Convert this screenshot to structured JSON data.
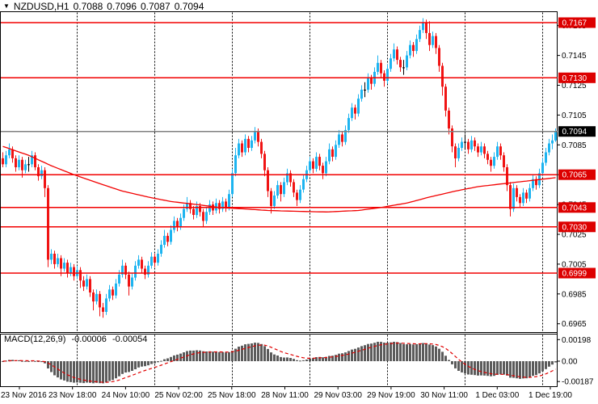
{
  "header": {
    "menu_icon": "▼",
    "symbol_period": "NZDUSD,H1",
    "open": "0.7088",
    "high": "0.7096",
    "low": "0.7087",
    "close": "0.7094"
  },
  "macd_panel": {
    "label": "MACD(12,26,9)",
    "main_value": "-0.00006",
    "signal_value": "-0.00054",
    "axis": [
      {
        "label": "0.00198",
        "value": 0.00198
      },
      {
        "label": "0.00",
        "value": 0.0
      },
      {
        "label": "-0.00187",
        "value": -0.00187
      }
    ]
  },
  "colors": {
    "up_candle": "#1db4f0",
    "down_candle": "#f01414",
    "doji_candle": "#000000",
    "level_line": "#f20000",
    "ma_line": "#f20000",
    "current_line": "#808080",
    "badge_level_bg": "#dd0000",
    "badge_current_bg": "#000000",
    "badge_text": "#ffffff",
    "histogram": "#5b5b5b",
    "signal_line": "#e00000",
    "border": "#000000",
    "separator": "#000000",
    "text": "#000000",
    "background": "#ffffff"
  },
  "chart_data": {
    "type": "candlestick",
    "symbol": "NZDUSD",
    "timeframe": "H1",
    "title": "NZDUSD,H1",
    "last_ohlc": {
      "open": 0.7088,
      "high": 0.7096,
      "low": 0.7087,
      "close": 0.7094
    },
    "current_price": 0.7094,
    "y_ticks": [
      0.7165,
      0.7145,
      0.7125,
      0.7105,
      0.7085,
      0.7065,
      0.7045,
      0.7025,
      0.7005,
      0.6985,
      0.6965
    ],
    "level_lines": [
      0.7167,
      0.713,
      0.7065,
      0.7043,
      0.703,
      0.6999
    ],
    "x_labels": [
      "23 Nov 2016",
      "23 Nov 18:00",
      "24 Nov 10:00",
      "25 Nov 02:00",
      "25 Nov 18:00",
      "28 Nov 11:00",
      "29 Nov 03:00",
      "29 Nov 19:00",
      "30 Nov 11:00",
      "1 Dec 03:00",
      "1 Dec 19:00"
    ],
    "y_range": [
      0.6962,
      0.7175
    ],
    "macd": {
      "params": [
        12,
        26,
        9
      ],
      "y_range": [
        -0.00187,
        0.00198
      ],
      "last_main": -6e-05,
      "last_signal": -0.00054
    },
    "ma_points": [
      [
        0,
        0.7084
      ],
      [
        8,
        0.7078
      ],
      [
        15,
        0.7071
      ],
      [
        22,
        0.7065
      ],
      [
        30,
        0.7059
      ],
      [
        37,
        0.7054
      ],
      [
        45,
        0.705
      ],
      [
        52,
        0.7047
      ],
      [
        60,
        0.7045
      ],
      [
        67,
        0.7043
      ],
      [
        75,
        0.7042
      ],
      [
        82,
        0.7041
      ],
      [
        90,
        0.70405
      ],
      [
        100,
        0.704
      ],
      [
        110,
        0.7041
      ],
      [
        117,
        0.7043
      ],
      [
        125,
        0.7046
      ],
      [
        132,
        0.705
      ],
      [
        140,
        0.7054
      ],
      [
        147,
        0.7057
      ],
      [
        155,
        0.7059
      ],
      [
        163,
        0.7061
      ],
      [
        171,
        0.7063
      ]
    ],
    "candles": [
      [
        0.7076,
        0.708,
        0.707,
        0.7072
      ],
      [
        0.7072,
        0.7081,
        0.707,
        0.7078
      ],
      [
        0.7078,
        0.7086,
        0.7076,
        0.7082
      ],
      [
        0.7082,
        0.7084,
        0.7073,
        0.7076
      ],
      [
        0.7076,
        0.7078,
        0.7067,
        0.707
      ],
      [
        0.707,
        0.7078,
        0.7068,
        0.7075
      ],
      [
        0.7075,
        0.7077,
        0.7063,
        0.7068
      ],
      [
        0.7068,
        0.7075,
        0.7066,
        0.7072
      ],
      [
        0.7072,
        0.7077,
        0.7067,
        0.7072
      ],
      [
        0.7072,
        0.7081,
        0.707,
        0.7078
      ],
      [
        0.7078,
        0.708,
        0.7068,
        0.707
      ],
      [
        0.707,
        0.7072,
        0.7061,
        0.7064
      ],
      [
        0.7064,
        0.7071,
        0.7062,
        0.7068
      ],
      [
        0.7068,
        0.707,
        0.705,
        0.7056
      ],
      [
        0.7056,
        0.7058,
        0.7003,
        0.7008
      ],
      [
        0.7008,
        0.7015,
        0.7005,
        0.7012
      ],
      [
        0.7012,
        0.7014,
        0.7002,
        0.7005
      ],
      [
        0.7005,
        0.7012,
        0.7003,
        0.7009
      ],
      [
        0.7009,
        0.7011,
        0.6997,
        0.7002
      ],
      [
        0.7002,
        0.7009,
        0.7,
        0.7006
      ],
      [
        0.7006,
        0.7008,
        0.6996,
        0.6999
      ],
      [
        0.6999,
        0.7006,
        0.6997,
        0.7003
      ],
      [
        0.7003,
        0.7005,
        0.6994,
        0.6997
      ],
      [
        0.6997,
        0.7004,
        0.6995,
        0.7001
      ],
      [
        0.7001,
        0.7003,
        0.6989,
        0.6994
      ],
      [
        0.6994,
        0.6997,
        0.6987,
        0.699
      ],
      [
        0.699,
        0.6998,
        0.6988,
        0.6995
      ],
      [
        0.6995,
        0.6997,
        0.6983,
        0.6986
      ],
      [
        0.6986,
        0.6988,
        0.6974,
        0.698
      ],
      [
        0.698,
        0.6988,
        0.6978,
        0.6985
      ],
      [
        0.6985,
        0.6987,
        0.697,
        0.6976
      ],
      [
        0.6976,
        0.6979,
        0.6969,
        0.6973
      ],
      [
        0.6973,
        0.6985,
        0.6971,
        0.6982
      ],
      [
        0.6982,
        0.6991,
        0.698,
        0.6988
      ],
      [
        0.6988,
        0.699,
        0.6981,
        0.6984
      ],
      [
        0.6984,
        0.6995,
        0.6982,
        0.6992
      ],
      [
        0.6992,
        0.7001,
        0.699,
        0.6998
      ],
      [
        0.6998,
        0.7008,
        0.6996,
        0.7004
      ],
      [
        0.7004,
        0.7006,
        0.6995,
        0.6998
      ],
      [
        0.6998,
        0.7,
        0.6984,
        0.699
      ],
      [
        0.699,
        0.6999,
        0.6988,
        0.6996
      ],
      [
        0.6996,
        0.7007,
        0.6994,
        0.7004
      ],
      [
        0.7004,
        0.7011,
        0.7002,
        0.7008
      ],
      [
        0.7008,
        0.701,
        0.6999,
        0.7002
      ],
      [
        0.7002,
        0.7004,
        0.6995,
        0.6998
      ],
      [
        0.6998,
        0.7007,
        0.6996,
        0.7004
      ],
      [
        0.7004,
        0.7013,
        0.7002,
        0.701
      ],
      [
        0.701,
        0.7012,
        0.7003,
        0.7006
      ],
      [
        0.7006,
        0.7015,
        0.7004,
        0.7012
      ],
      [
        0.7012,
        0.7021,
        0.701,
        0.7018
      ],
      [
        0.7018,
        0.7028,
        0.7016,
        0.7024
      ],
      [
        0.7024,
        0.7026,
        0.7017,
        0.702
      ],
      [
        0.702,
        0.7031,
        0.7018,
        0.7028
      ],
      [
        0.7028,
        0.7037,
        0.7026,
        0.7034
      ],
      [
        0.7034,
        0.7036,
        0.7027,
        0.703
      ],
      [
        0.703,
        0.7039,
        0.7028,
        0.7036
      ],
      [
        0.7036,
        0.7045,
        0.7034,
        0.7042
      ],
      [
        0.7042,
        0.705,
        0.704,
        0.7046
      ],
      [
        0.7046,
        0.7048,
        0.7039,
        0.7042
      ],
      [
        0.7042,
        0.7044,
        0.7035,
        0.7038
      ],
      [
        0.7038,
        0.7047,
        0.7036,
        0.7044
      ],
      [
        0.7044,
        0.7046,
        0.7037,
        0.704
      ],
      [
        0.704,
        0.7042,
        0.703,
        0.7034
      ],
      [
        0.7034,
        0.7043,
        0.7032,
        0.704
      ],
      [
        0.704,
        0.7048,
        0.7038,
        0.7045
      ],
      [
        0.7045,
        0.7047,
        0.7038,
        0.7041
      ],
      [
        0.7041,
        0.7049,
        0.7039,
        0.7046
      ],
      [
        0.7046,
        0.7048,
        0.7039,
        0.7042
      ],
      [
        0.7042,
        0.705,
        0.704,
        0.7047
      ],
      [
        0.7047,
        0.7049,
        0.704,
        0.7043
      ],
      [
        0.7043,
        0.7055,
        0.7041,
        0.7052
      ],
      [
        0.7052,
        0.7069,
        0.705,
        0.7066
      ],
      [
        0.7066,
        0.7083,
        0.7064,
        0.7078
      ],
      [
        0.7078,
        0.7089,
        0.7076,
        0.7086
      ],
      [
        0.7086,
        0.7088,
        0.7077,
        0.708
      ],
      [
        0.708,
        0.7092,
        0.7078,
        0.7089
      ],
      [
        0.7089,
        0.7091,
        0.708,
        0.7083
      ],
      [
        0.7083,
        0.7091,
        0.7081,
        0.7088
      ],
      [
        0.7088,
        0.7097,
        0.7086,
        0.7094
      ],
      [
        0.7094,
        0.7096,
        0.7084,
        0.7087
      ],
      [
        0.7087,
        0.7089,
        0.7076,
        0.7079
      ],
      [
        0.7079,
        0.7081,
        0.7064,
        0.7068
      ],
      [
        0.7068,
        0.707,
        0.705,
        0.7054
      ],
      [
        0.7054,
        0.7056,
        0.7039,
        0.7044
      ],
      [
        0.7044,
        0.7054,
        0.7042,
        0.7051
      ],
      [
        0.7051,
        0.7061,
        0.7049,
        0.7058
      ],
      [
        0.7058,
        0.706,
        0.7047,
        0.7052
      ],
      [
        0.7052,
        0.7063,
        0.705,
        0.706
      ],
      [
        0.706,
        0.7069,
        0.7058,
        0.7066
      ],
      [
        0.7066,
        0.7068,
        0.7057,
        0.706
      ],
      [
        0.706,
        0.7062,
        0.705,
        0.7053
      ],
      [
        0.7053,
        0.7055,
        0.7044,
        0.7048
      ],
      [
        0.7048,
        0.7058,
        0.7046,
        0.7055
      ],
      [
        0.7055,
        0.7065,
        0.7053,
        0.7062
      ],
      [
        0.7062,
        0.7071,
        0.706,
        0.7068
      ],
      [
        0.7068,
        0.7077,
        0.7066,
        0.7074
      ],
      [
        0.7074,
        0.7076,
        0.7066,
        0.7069
      ],
      [
        0.7069,
        0.708,
        0.7067,
        0.7077
      ],
      [
        0.7077,
        0.7079,
        0.7068,
        0.7071
      ],
      [
        0.7071,
        0.7073,
        0.7062,
        0.7066
      ],
      [
        0.7066,
        0.7077,
        0.7064,
        0.7074
      ],
      [
        0.7074,
        0.7086,
        0.7072,
        0.7082
      ],
      [
        0.7082,
        0.7084,
        0.7074,
        0.7077
      ],
      [
        0.7077,
        0.7088,
        0.7075,
        0.7085
      ],
      [
        0.7085,
        0.7095,
        0.7083,
        0.7092
      ],
      [
        0.7092,
        0.7094,
        0.7084,
        0.7087
      ],
      [
        0.7087,
        0.7098,
        0.7085,
        0.7095
      ],
      [
        0.7095,
        0.7106,
        0.7093,
        0.7103
      ],
      [
        0.7103,
        0.7113,
        0.7101,
        0.711
      ],
      [
        0.711,
        0.7112,
        0.7102,
        0.7106
      ],
      [
        0.7106,
        0.7119,
        0.7104,
        0.7116
      ],
      [
        0.7116,
        0.7125,
        0.7114,
        0.7122
      ],
      [
        0.7122,
        0.7127,
        0.7117,
        0.7122
      ],
      [
        0.7122,
        0.7133,
        0.712,
        0.713
      ],
      [
        0.713,
        0.7132,
        0.7122,
        0.7126
      ],
      [
        0.7126,
        0.7137,
        0.7124,
        0.7134
      ],
      [
        0.7134,
        0.7145,
        0.7132,
        0.714
      ],
      [
        0.714,
        0.7142,
        0.713,
        0.7133
      ],
      [
        0.7133,
        0.7135,
        0.7124,
        0.7128
      ],
      [
        0.7128,
        0.7139,
        0.7126,
        0.7136
      ],
      [
        0.7136,
        0.7146,
        0.7134,
        0.7143
      ],
      [
        0.7143,
        0.7153,
        0.7141,
        0.7149
      ],
      [
        0.7149,
        0.7151,
        0.7139,
        0.7142
      ],
      [
        0.7142,
        0.7144,
        0.7134,
        0.7137
      ],
      [
        0.7137,
        0.7142,
        0.7132,
        0.7137
      ],
      [
        0.7137,
        0.7148,
        0.7135,
        0.7145
      ],
      [
        0.7145,
        0.7155,
        0.7143,
        0.7152
      ],
      [
        0.7152,
        0.7154,
        0.7144,
        0.7148
      ],
      [
        0.7148,
        0.7159,
        0.7146,
        0.7156
      ],
      [
        0.7156,
        0.7165,
        0.7154,
        0.7162
      ],
      [
        0.7162,
        0.717,
        0.716,
        0.7167
      ],
      [
        0.7167,
        0.7169,
        0.7156,
        0.716
      ],
      [
        0.716,
        0.7168,
        0.7148,
        0.7152
      ],
      [
        0.7152,
        0.7161,
        0.715,
        0.7158
      ],
      [
        0.7158,
        0.716,
        0.7146,
        0.715
      ],
      [
        0.715,
        0.7152,
        0.7134,
        0.7138
      ],
      [
        0.7138,
        0.714,
        0.7118,
        0.7124
      ],
      [
        0.7124,
        0.7126,
        0.7104,
        0.7108
      ],
      [
        0.7108,
        0.711,
        0.7092,
        0.7096
      ],
      [
        0.7096,
        0.7098,
        0.708,
        0.7084
      ],
      [
        0.7084,
        0.7086,
        0.707,
        0.7076
      ],
      [
        0.7076,
        0.7086,
        0.7074,
        0.7083
      ],
      [
        0.7083,
        0.709,
        0.7081,
        0.7087
      ],
      [
        0.7087,
        0.7092,
        0.7082,
        0.7087
      ],
      [
        0.7087,
        0.7089,
        0.7079,
        0.7082
      ],
      [
        0.7082,
        0.7091,
        0.708,
        0.7088
      ],
      [
        0.7088,
        0.709,
        0.7081,
        0.7084
      ],
      [
        0.7084,
        0.7086,
        0.7077,
        0.708
      ],
      [
        0.708,
        0.7087,
        0.7078,
        0.7084
      ],
      [
        0.7084,
        0.7086,
        0.7076,
        0.7079
      ],
      [
        0.7079,
        0.7081,
        0.7072,
        0.7075
      ],
      [
        0.7075,
        0.7077,
        0.7067,
        0.7071
      ],
      [
        0.7071,
        0.708,
        0.7069,
        0.7077
      ],
      [
        0.7077,
        0.7087,
        0.7075,
        0.7084
      ],
      [
        0.7084,
        0.7086,
        0.7075,
        0.7078
      ],
      [
        0.7078,
        0.708,
        0.7067,
        0.707
      ],
      [
        0.707,
        0.7072,
        0.7054,
        0.7058
      ],
      [
        0.7058,
        0.706,
        0.7037,
        0.7042
      ],
      [
        0.7042,
        0.7059,
        0.704,
        0.7056
      ],
      [
        0.7056,
        0.7058,
        0.7047,
        0.705
      ],
      [
        0.705,
        0.7052,
        0.7043,
        0.7046
      ],
      [
        0.7046,
        0.7056,
        0.7044,
        0.7053
      ],
      [
        0.7053,
        0.7055,
        0.7046,
        0.7049
      ],
      [
        0.7049,
        0.7059,
        0.7047,
        0.7056
      ],
      [
        0.7056,
        0.7065,
        0.7054,
        0.7062
      ],
      [
        0.7062,
        0.7064,
        0.7055,
        0.7058
      ],
      [
        0.7058,
        0.7069,
        0.7056,
        0.7066
      ],
      [
        0.7066,
        0.7076,
        0.7064,
        0.7073
      ],
      [
        0.7073,
        0.7083,
        0.7071,
        0.708
      ],
      [
        0.708,
        0.7089,
        0.7078,
        0.7086
      ],
      [
        0.7086,
        0.7092,
        0.7082,
        0.7088
      ],
      [
        0.7088,
        0.7096,
        0.7087,
        0.7094
      ]
    ]
  }
}
